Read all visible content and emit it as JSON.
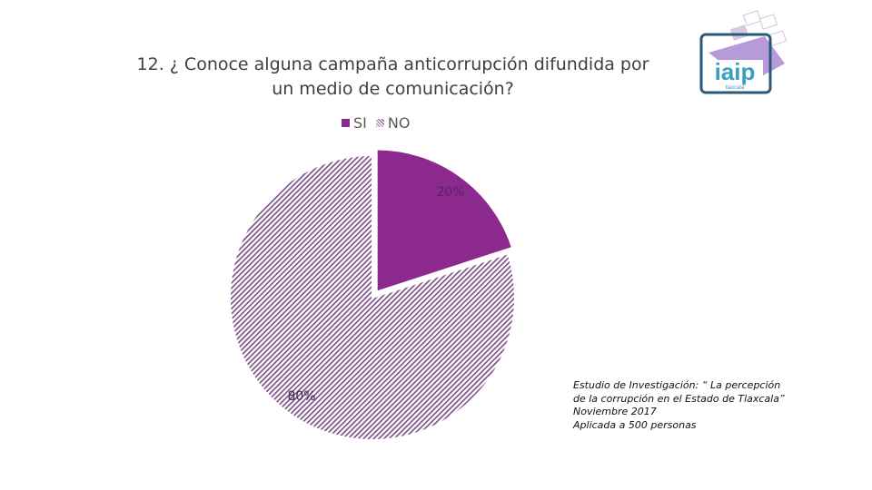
{
  "chart_data": {
    "type": "pie",
    "title": "12. ¿ Conoce alguna campaña anticorrupción difundida por un medio de comunicación?",
    "title_lines": [
      "12. ¿ Conoce alguna campaña anticorrupción difundida por",
      "un medio de comunicación?"
    ],
    "categories": [
      "SI",
      "NO"
    ],
    "values": [
      20,
      80
    ],
    "labels": [
      "20%",
      "80%"
    ],
    "colors": [
      "#8b2a8c",
      "#7a4a86"
    ],
    "legend_position": "top"
  },
  "logo": {
    "text": "iaip",
    "subtext": "tlaxcala"
  },
  "footnote": {
    "lines": [
      "Estudio de Investigación: “ La percepción",
      "de la corrupción en el Estado de Tlaxcala”",
      "Noviembre 2017",
      "Aplicada a 500 personas"
    ]
  }
}
